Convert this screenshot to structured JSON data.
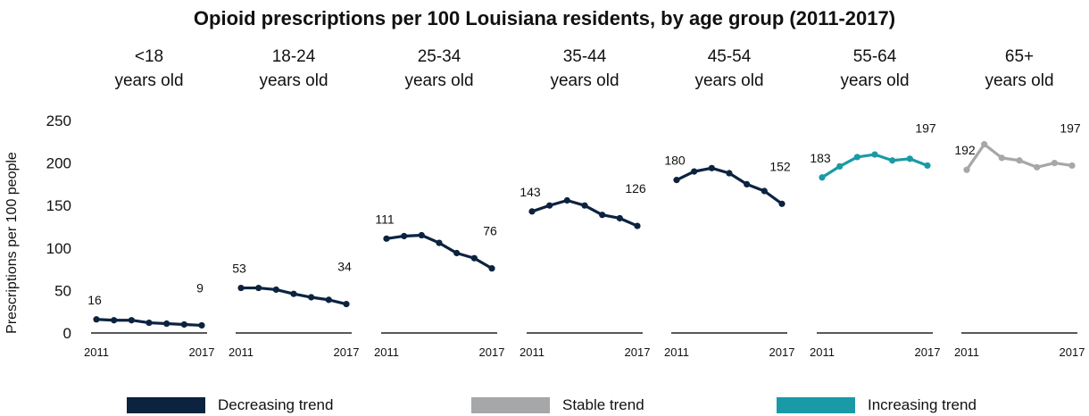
{
  "title": "Opioid prescriptions per 100 Louisiana residents, by age group (2011-2017)",
  "ylabel": "Prescriptions per 100 people",
  "colors": {
    "decreasing": "#0c2340",
    "stable": "#a5a7a8",
    "increasing": "#1a9aa6",
    "baseline": "#222222"
  },
  "legend": [
    {
      "label": "Decreasing trend",
      "color_key": "decreasing"
    },
    {
      "label": "Stable trend",
      "color_key": "stable"
    },
    {
      "label": "Increasing trend",
      "color_key": "increasing"
    }
  ],
  "chart_data": {
    "type": "line",
    "title": "Opioid prescriptions per 100 Louisiana residents, by age group (2011-2017)",
    "ylabel": "Prescriptions per 100 people",
    "ylim": [
      0,
      250
    ],
    "yticks": [
      0,
      50,
      100,
      150,
      200,
      250
    ],
    "x": [
      2011,
      2012,
      2013,
      2014,
      2015,
      2016,
      2017
    ],
    "xtick_labels": [
      "2011",
      "2017"
    ],
    "grid": false,
    "legend_position": "bottom",
    "panels": [
      {
        "label_line1": "<18",
        "label_line2": "years old",
        "trend": "decreasing",
        "values": [
          16,
          15,
          15,
          12,
          11,
          10,
          9
        ],
        "start_label": "16",
        "end_label": "9"
      },
      {
        "label_line1": "18-24",
        "label_line2": "years old",
        "trend": "decreasing",
        "values": [
          53,
          53,
          51,
          46,
          42,
          39,
          34
        ],
        "start_label": "53",
        "end_label": "34"
      },
      {
        "label_line1": "25-34",
        "label_line2": "years old",
        "trend": "decreasing",
        "values": [
          111,
          114,
          115,
          106,
          94,
          88,
          76
        ],
        "start_label": "111",
        "end_label": "76"
      },
      {
        "label_line1": "35-44",
        "label_line2": "years old",
        "trend": "decreasing",
        "values": [
          143,
          150,
          156,
          150,
          139,
          135,
          126
        ],
        "start_label": "143",
        "end_label": "126"
      },
      {
        "label_line1": "45-54",
        "label_line2": "years old",
        "trend": "decreasing",
        "values": [
          180,
          190,
          194,
          188,
          175,
          167,
          152
        ],
        "start_label": "180",
        "end_label": "152"
      },
      {
        "label_line1": "55-64",
        "label_line2": "years old",
        "trend": "increasing",
        "values": [
          183,
          196,
          207,
          210,
          203,
          205,
          197
        ],
        "start_label": "183",
        "end_label": "197"
      },
      {
        "label_line1": "65+",
        "label_line2": "years old",
        "trend": "stable",
        "values": [
          192,
          222,
          206,
          203,
          195,
          200,
          197
        ],
        "start_label": "192",
        "end_label": "197"
      }
    ]
  }
}
